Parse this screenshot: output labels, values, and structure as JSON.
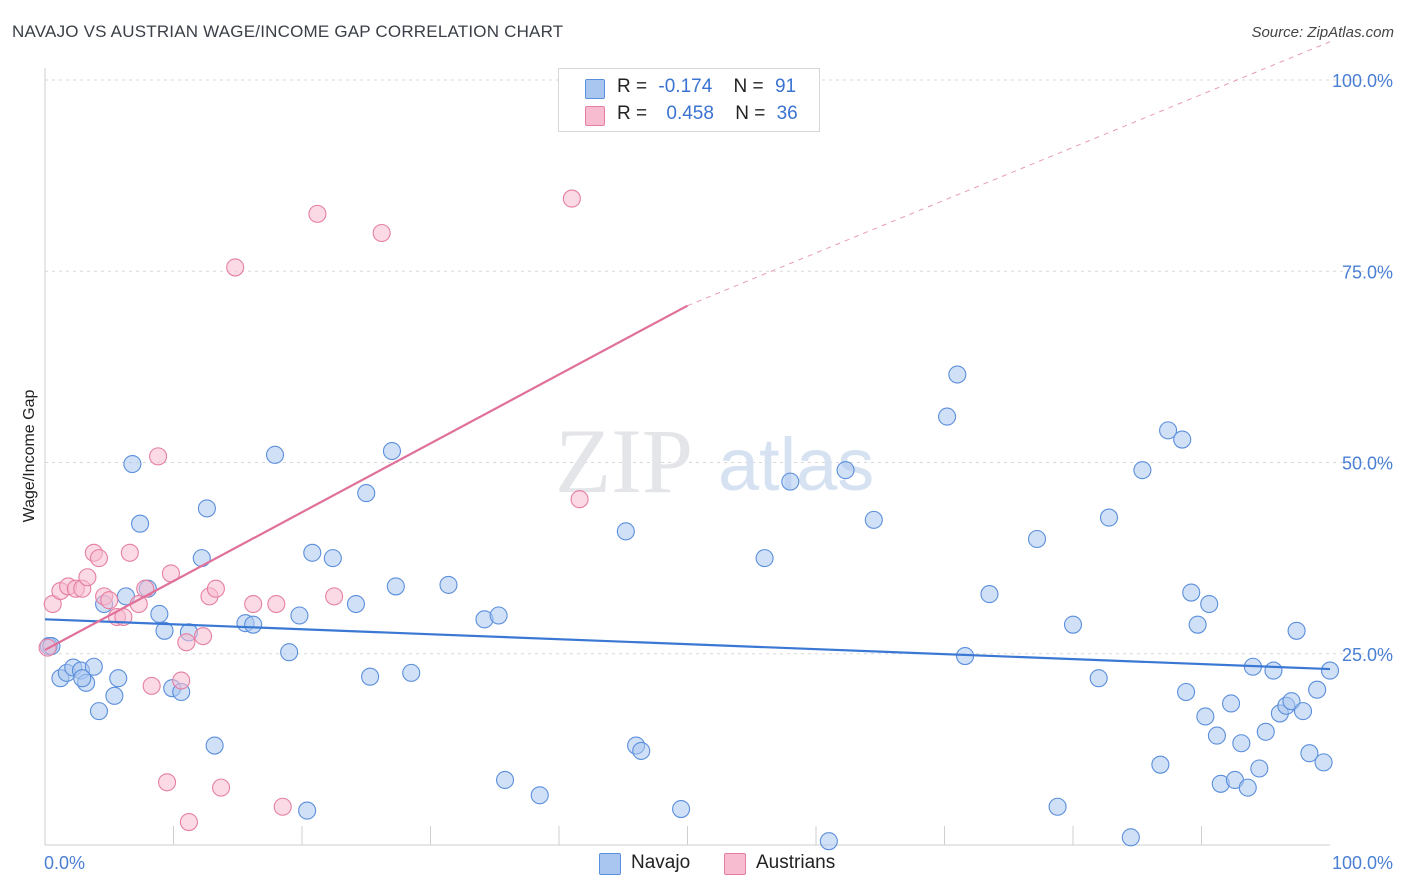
{
  "title": "NAVAJO VS AUSTRIAN WAGE/INCOME GAP CORRELATION CHART",
  "source": "Source: ZipAtlas.com",
  "watermark": {
    "zip": "ZIP",
    "atlas": "atlas"
  },
  "legend": {
    "r_label": "R =",
    "n_label": "N =",
    "rows": [
      {
        "name": "Navajo",
        "r": "-0.174",
        "n": "91",
        "fill": "#a9c6f0",
        "stroke": "#5b8fdc"
      },
      {
        "name": "Austrians",
        "r": "0.458",
        "n": "36",
        "fill": "#f8bcd0",
        "stroke": "#e57fa1"
      }
    ]
  },
  "bottom_legend": {
    "navajo": "Navajo",
    "austrians": "Austrians"
  },
  "colors": {
    "navajo_fill": "#a9c6f0",
    "navajo_stroke": "#5b8fdc",
    "navajo_line": "#3a78d4",
    "austrians_fill": "#f8bcd0",
    "austrians_stroke": "#e57fa1",
    "austrians_line": "#e0709a",
    "grid": "#d8d8d8",
    "tick_text": "#4a7fd4"
  },
  "chart_data": {
    "type": "scatter",
    "title": "NAVAJO VS AUSTRIAN WAGE/INCOME GAP CORRELATION CHART",
    "xlabel": "",
    "ylabel": "Wage/Income Gap",
    "xlim": [
      0,
      100
    ],
    "ylim": [
      0,
      100
    ],
    "x_tick_labels": [
      {
        "value": 0,
        "label": "0.0%"
      },
      {
        "value": 100,
        "label": "100.0%"
      }
    ],
    "y_tick_labels": [
      {
        "value": 25,
        "label": "25.0%"
      },
      {
        "value": 50,
        "label": "50.0%"
      },
      {
        "value": 75,
        "label": "75.0%"
      },
      {
        "value": 100,
        "label": "100.0%"
      }
    ],
    "y_gridlines": [
      25,
      50,
      75,
      100
    ],
    "x_minor_ticks": [
      10,
      20,
      30,
      40,
      50,
      60,
      70,
      80,
      90
    ],
    "series": [
      {
        "name": "Navajo",
        "r": -0.174,
        "n": 91,
        "trend": {
          "x0": 0,
          "y0": 29.5,
          "x1": 100,
          "y1": 23.0
        },
        "points": [
          [
            0.3,
            26.0
          ],
          [
            1.2,
            21.8
          ],
          [
            1.7,
            22.5
          ],
          [
            2.2,
            23.2
          ],
          [
            2.8,
            22.8
          ],
          [
            3.2,
            21.2
          ],
          [
            3.8,
            23.3
          ],
          [
            4.2,
            17.5
          ],
          [
            4.6,
            31.5
          ],
          [
            5.4,
            19.5
          ],
          [
            5.7,
            21.8
          ],
          [
            6.3,
            32.5
          ],
          [
            6.8,
            49.8
          ],
          [
            7.4,
            42.0
          ],
          [
            8.0,
            33.5
          ],
          [
            8.9,
            30.2
          ],
          [
            9.3,
            28.0
          ],
          [
            9.9,
            20.5
          ],
          [
            10.6,
            20.0
          ],
          [
            11.2,
            27.8
          ],
          [
            12.2,
            37.5
          ],
          [
            12.6,
            44.0
          ],
          [
            13.2,
            13.0
          ],
          [
            15.6,
            29.0
          ],
          [
            16.2,
            28.8
          ],
          [
            17.9,
            51.0
          ],
          [
            19.0,
            25.2
          ],
          [
            19.8,
            30.0
          ],
          [
            20.4,
            4.5
          ],
          [
            20.8,
            38.2
          ],
          [
            22.4,
            37.5
          ],
          [
            24.2,
            31.5
          ],
          [
            25.0,
            46.0
          ],
          [
            25.3,
            22.0
          ],
          [
            27.0,
            51.5
          ],
          [
            27.3,
            33.8
          ],
          [
            28.5,
            22.5
          ],
          [
            31.4,
            34.0
          ],
          [
            34.2,
            29.5
          ],
          [
            35.3,
            30.0
          ],
          [
            35.8,
            8.5
          ],
          [
            38.5,
            6.5
          ],
          [
            45.2,
            41.0
          ],
          [
            46.0,
            13.0
          ],
          [
            46.4,
            12.3
          ],
          [
            49.5,
            4.7
          ],
          [
            56.0,
            37.5
          ],
          [
            58.0,
            47.5
          ],
          [
            61.0,
            0.5
          ],
          [
            62.3,
            49.0
          ],
          [
            64.5,
            42.5
          ],
          [
            70.2,
            56.0
          ],
          [
            71.0,
            61.5
          ],
          [
            71.6,
            24.7
          ],
          [
            73.5,
            32.8
          ],
          [
            77.2,
            40.0
          ],
          [
            78.8,
            5.0
          ],
          [
            80.0,
            28.8
          ],
          [
            82.0,
            21.8
          ],
          [
            82.8,
            42.8
          ],
          [
            84.5,
            1.0
          ],
          [
            85.4,
            49.0
          ],
          [
            86.8,
            10.5
          ],
          [
            87.4,
            54.2
          ],
          [
            88.5,
            53.0
          ],
          [
            88.8,
            20.0
          ],
          [
            89.2,
            33.0
          ],
          [
            89.7,
            28.8
          ],
          [
            90.3,
            16.8
          ],
          [
            90.6,
            31.5
          ],
          [
            91.2,
            14.3
          ],
          [
            91.5,
            8.0
          ],
          [
            92.3,
            18.5
          ],
          [
            92.6,
            8.5
          ],
          [
            93.1,
            13.3
          ],
          [
            93.6,
            7.5
          ],
          [
            94.0,
            23.3
          ],
          [
            94.5,
            10.0
          ],
          [
            95.0,
            14.8
          ],
          [
            95.6,
            22.8
          ],
          [
            96.1,
            17.2
          ],
          [
            96.6,
            18.2
          ],
          [
            97.0,
            18.8
          ],
          [
            97.4,
            28.0
          ],
          [
            97.9,
            17.5
          ],
          [
            98.4,
            12.0
          ],
          [
            99.0,
            20.3
          ],
          [
            99.5,
            10.8
          ],
          [
            100.0,
            22.8
          ],
          [
            2.9,
            21.8
          ],
          [
            0.5,
            26.0
          ]
        ]
      },
      {
        "name": "Austrians",
        "r": 0.458,
        "n": 36,
        "trend": {
          "x0": 0,
          "y0": 25.5,
          "x1": 50,
          "y1": 70.5,
          "dash_to": {
            "x": 100,
            "y": 105.0
          }
        },
        "points": [
          [
            0.2,
            25.8
          ],
          [
            0.6,
            31.5
          ],
          [
            1.2,
            33.2
          ],
          [
            1.8,
            33.8
          ],
          [
            2.4,
            33.5
          ],
          [
            2.9,
            33.5
          ],
          [
            3.3,
            35.0
          ],
          [
            3.8,
            38.2
          ],
          [
            4.2,
            37.5
          ],
          [
            4.6,
            32.5
          ],
          [
            5.0,
            32.0
          ],
          [
            5.6,
            29.8
          ],
          [
            6.1,
            29.8
          ],
          [
            6.6,
            38.2
          ],
          [
            7.3,
            31.5
          ],
          [
            7.8,
            33.5
          ],
          [
            8.3,
            20.8
          ],
          [
            8.8,
            50.8
          ],
          [
            9.5,
            8.2
          ],
          [
            9.8,
            35.5
          ],
          [
            10.6,
            21.5
          ],
          [
            11.0,
            26.5
          ],
          [
            11.2,
            3.0
          ],
          [
            12.3,
            27.3
          ],
          [
            12.8,
            32.5
          ],
          [
            13.3,
            33.5
          ],
          [
            13.7,
            7.5
          ],
          [
            14.8,
            75.5
          ],
          [
            16.2,
            31.5
          ],
          [
            18.0,
            31.5
          ],
          [
            18.5,
            5.0
          ],
          [
            21.2,
            82.5
          ],
          [
            22.5,
            32.5
          ],
          [
            26.2,
            80.0
          ],
          [
            41.0,
            84.5
          ],
          [
            41.6,
            45.2
          ]
        ]
      }
    ]
  }
}
